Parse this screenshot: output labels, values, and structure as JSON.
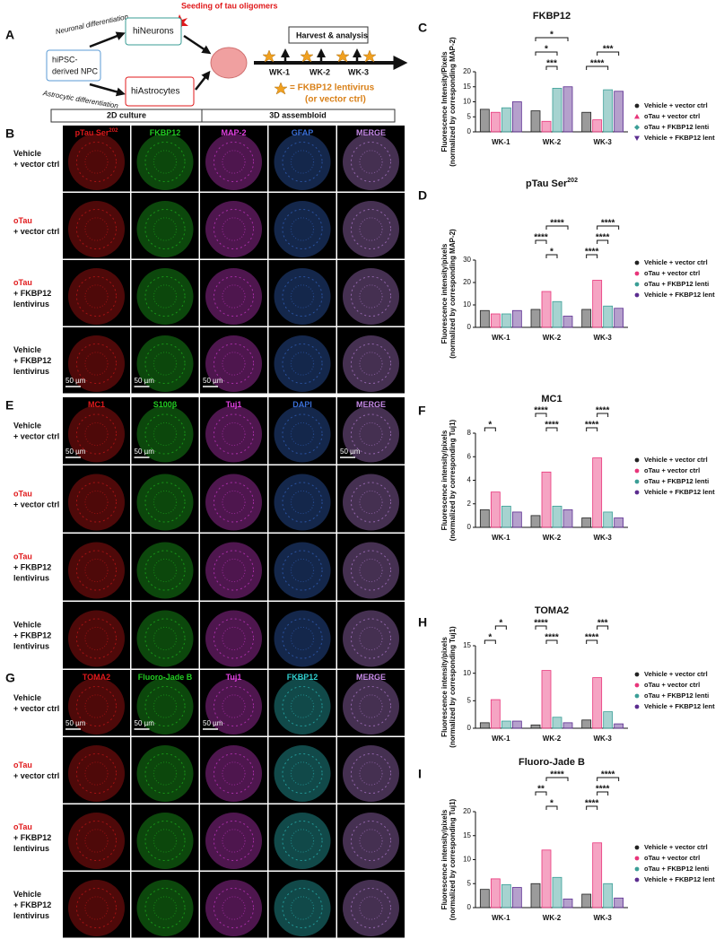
{
  "schematic": {
    "label": "A",
    "seeding": "Seeding of tau oligomers",
    "neuronal": "Neuronal differentiation",
    "astrocytic": "Astrocytic differentiation",
    "npc": [
      "hiPSC-",
      "derived NPC"
    ],
    "neurons": "hiNeurons",
    "astrocytes": "hiAstrocytes",
    "harvest": "Harvest & analysis",
    "weeks": [
      "WK-1",
      "WK-2",
      "WK-3"
    ],
    "legend": [
      "= FKBP12 lentivirus",
      "(or vector ctrl)"
    ],
    "stages": [
      "2D culture",
      "3D assembloid"
    ]
  },
  "image_panels": [
    {
      "label": "B",
      "scale_bar": "50 µm",
      "columns": [
        {
          "name": "pTau Ser",
          "sup": "202",
          "color": "#e0191b"
        },
        {
          "name": "FKBP12",
          "color": "#22cc22"
        },
        {
          "name": "MAP-2",
          "color": "#e040e0"
        },
        {
          "name": "GFAP",
          "color": "#3a6fd8"
        },
        {
          "name": "MERGE",
          "color": "#c78ae8"
        }
      ],
      "rows": [
        {
          "lines": [
            "Vehicle",
            "+ vector ctrl"
          ]
        },
        {
          "lines": [
            "oTau",
            "+ vector ctrl"
          ],
          "first_line_color": "#e0191b"
        },
        {
          "lines": [
            "oTau",
            "+ FKBP12",
            "lentivirus"
          ],
          "first_line_color": "#e0191b"
        },
        {
          "lines": [
            "Vehicle",
            "+ FKBP12",
            "lentivirus"
          ]
        }
      ]
    },
    {
      "label": "E",
      "scale_bar": "50 µm",
      "columns": [
        {
          "name": "MC1",
          "color": "#e0191b"
        },
        {
          "name": "S100β",
          "color": "#22cc22"
        },
        {
          "name": "Tuj1",
          "color": "#e040e0"
        },
        {
          "name": "DAPI",
          "color": "#3a6fd8"
        },
        {
          "name": "MERGE",
          "color": "#c78ae8"
        }
      ],
      "rows": [
        {
          "lines": [
            "Vehicle",
            "+ vector ctrl"
          ]
        },
        {
          "lines": [
            "oTau",
            "+ vector ctrl"
          ],
          "first_line_color": "#e0191b"
        },
        {
          "lines": [
            "oTau",
            "+ FKBP12",
            "lentivirus"
          ],
          "first_line_color": "#e0191b"
        },
        {
          "lines": [
            "Vehicle",
            "+ FKBP12",
            "lentivirus"
          ]
        }
      ]
    },
    {
      "label": "G",
      "scale_bar": "50 µm",
      "columns": [
        {
          "name": "TOMA2",
          "color": "#e0191b"
        },
        {
          "name": "Fluoro-Jade B",
          "color": "#22cc22"
        },
        {
          "name": "Tuj1",
          "color": "#e040e0"
        },
        {
          "name": "FKBP12",
          "color": "#30d0d0"
        },
        {
          "name": "MERGE",
          "color": "#c78ae8"
        }
      ],
      "rows": [
        {
          "lines": [
            "Vehicle",
            "+ vector ctrl"
          ]
        },
        {
          "lines": [
            "oTau",
            "+ vector ctrl"
          ],
          "first_line_color": "#e0191b"
        },
        {
          "lines": [
            "oTau",
            "+ FKBP12",
            "lentivirus"
          ],
          "first_line_color": "#e0191b"
        },
        {
          "lines": [
            "Vehicle",
            "+ FKBP12",
            "lentivirus"
          ]
        }
      ]
    }
  ],
  "chart_data": [
    {
      "type": "bar",
      "panel": "C",
      "title": "FKBP12",
      "y_label": [
        "Fluorescence Intensity/Pixels",
        "(normalized by corresponding MAP-2)"
      ],
      "categories": [
        "WK-1",
        "WK-2",
        "WK-3"
      ],
      "ylim": [
        0,
        20
      ],
      "yticks": [
        0,
        5,
        10,
        15,
        20
      ],
      "series": [
        {
          "name": "Vehicle + vector ctrl",
          "color": "#222222",
          "marker": "circle",
          "values": [
            7.5,
            7,
            6.5
          ]
        },
        {
          "name": "oTau + vector ctrl",
          "color": "#e8357a",
          "marker": "triangle",
          "values": [
            6.5,
            3.5,
            4
          ]
        },
        {
          "name": "oTau + FKBP12 lenti",
          "color": "#3a9e96",
          "marker": "diamond",
          "values": [
            8,
            14.5,
            14
          ]
        },
        {
          "name": "Vehicle + FKBP12 lenti",
          "color": "#5b2c8f",
          "marker": "triangle-down",
          "values": [
            10,
            15,
            13.5
          ]
        }
      ],
      "significance": [
        "*",
        "*",
        "***",
        "***",
        "****"
      ]
    },
    {
      "type": "bar",
      "panel": "D",
      "title": "pTau Ser",
      "title_sup": "202",
      "y_label": [
        "Fluorescence intensity/pixels",
        "(normalized by corresponding MAP-2)"
      ],
      "categories": [
        "WK-1",
        "WK-2",
        "WK-3"
      ],
      "ylim": [
        0,
        30
      ],
      "yticks": [
        0,
        10,
        20,
        30
      ],
      "series": [
        {
          "name": "Vehicle + vector ctrl",
          "color": "#222222",
          "marker": "circle",
          "values": [
            7.5,
            8,
            8
          ]
        },
        {
          "name": "oTau + vector ctrl",
          "color": "#e8357a",
          "marker": "circle",
          "values": [
            6,
            16,
            21
          ]
        },
        {
          "name": "oTau + FKBP12 lenti",
          "color": "#3a9e96",
          "marker": "circle",
          "values": [
            6,
            11.5,
            9.5
          ]
        },
        {
          "name": "Vehicle + FKBP12 lenti",
          "color": "#5b2c8f",
          "marker": "circle",
          "values": [
            7.5,
            5,
            8.5
          ]
        }
      ],
      "significance": [
        "****",
        "****",
        "*",
        "****",
        "****",
        "****"
      ]
    },
    {
      "type": "bar",
      "panel": "F",
      "title": "MC1",
      "y_label": [
        "Fluorescence intensity/pixels",
        "(normalized by corresponding Tuj1)"
      ],
      "categories": [
        "WK-1",
        "WK-2",
        "WK-3"
      ],
      "ylim": [
        0,
        8
      ],
      "yticks": [
        0,
        2,
        4,
        6,
        8
      ],
      "series": [
        {
          "name": "Vehicle + vector ctrl",
          "color": "#222222",
          "marker": "circle",
          "values": [
            1.5,
            1,
            0.8
          ]
        },
        {
          "name": "oTau + vector ctrl",
          "color": "#e8357a",
          "marker": "circle",
          "values": [
            3,
            4.7,
            5.9
          ]
        },
        {
          "name": "oTau + FKBP12 lenti",
          "color": "#3a9e96",
          "marker": "circle",
          "values": [
            1.8,
            1.8,
            1.3
          ]
        },
        {
          "name": "Vehicle + FKBP12 lenti",
          "color": "#5b2c8f",
          "marker": "circle",
          "values": [
            1.3,
            1.5,
            0.8
          ]
        }
      ],
      "significance": [
        "*",
        "****",
        "****",
        "****",
        "****"
      ]
    },
    {
      "type": "bar",
      "panel": "H",
      "title": "TOMA2",
      "y_label": [
        "Fluorescence intensity/pixels",
        "(normalized by corresponding Tuj1)"
      ],
      "categories": [
        "WK-1",
        "WK-2",
        "WK-3"
      ],
      "ylim": [
        0,
        15
      ],
      "yticks": [
        0,
        5,
        10,
        15
      ],
      "series": [
        {
          "name": "Vehicle + vector ctrl",
          "color": "#222222",
          "marker": "circle",
          "values": [
            1,
            0.6,
            1.5
          ]
        },
        {
          "name": "oTau + vector ctrl",
          "color": "#e8357a",
          "marker": "circle",
          "values": [
            5.2,
            10.5,
            9.2
          ]
        },
        {
          "name": "oTau + FKBP12 lenti",
          "color": "#3a9e96",
          "marker": "circle",
          "values": [
            1.3,
            2,
            3
          ]
        },
        {
          "name": "Vehicle + FKBP12 lenti",
          "color": "#5b2c8f",
          "marker": "circle",
          "values": [
            1.3,
            1,
            0.8
          ]
        }
      ],
      "significance": [
        "*",
        "*",
        "****",
        "****",
        "****",
        "***"
      ]
    },
    {
      "type": "bar",
      "panel": "I",
      "title": "Fluoro-Jade B",
      "y_label": [
        "Fluorescence intensity/pixels",
        "(normalized by corresponding Tuj1)"
      ],
      "categories": [
        "WK-1",
        "WK-2",
        "WK-3"
      ],
      "ylim": [
        0,
        20
      ],
      "yticks": [
        0,
        5,
        10,
        15,
        20
      ],
      "series": [
        {
          "name": "Vehicle + vector ctrl",
          "color": "#222222",
          "marker": "circle",
          "values": [
            3.8,
            5,
            2.8
          ]
        },
        {
          "name": "oTau + vector ctrl",
          "color": "#e8357a",
          "marker": "circle",
          "values": [
            6,
            12,
            13.5
          ]
        },
        {
          "name": "oTau + FKBP12 lenti",
          "color": "#3a9e96",
          "marker": "circle",
          "values": [
            4.8,
            6.3,
            5
          ]
        },
        {
          "name": "Vehicle + FKBP12 lenti",
          "color": "#5b2c8f",
          "marker": "circle",
          "values": [
            4.2,
            1.8,
            2
          ]
        }
      ],
      "significance": [
        "**",
        "*",
        "****",
        "****",
        "****",
        "****"
      ]
    }
  ]
}
